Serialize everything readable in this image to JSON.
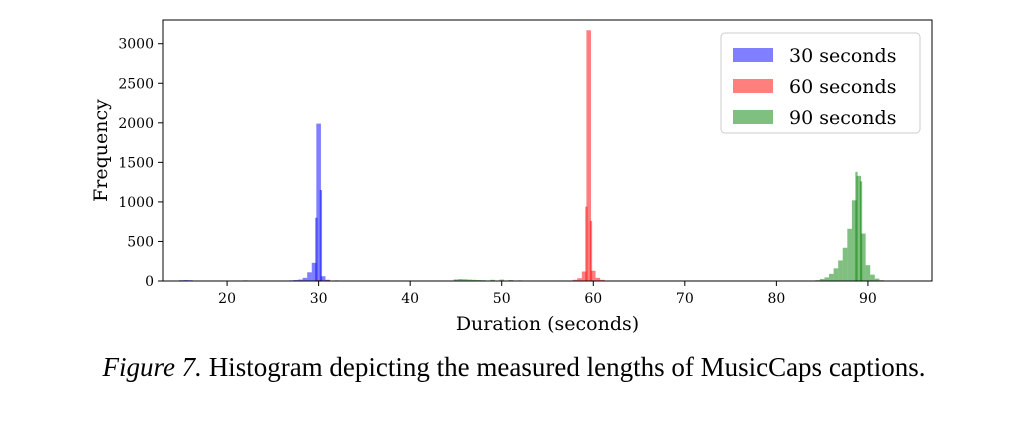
{
  "chart_data": {
    "type": "bar",
    "xlabel": "Duration (seconds)",
    "ylabel": "Frequency",
    "xlim": [
      13,
      97
    ],
    "ylim": [
      0,
      3300
    ],
    "xticks": [
      20,
      30,
      40,
      50,
      60,
      70,
      80,
      90
    ],
    "yticks": [
      0,
      500,
      1000,
      1500,
      2000,
      2500,
      3000
    ],
    "bin_width": 0.5,
    "legend_position": "top-right",
    "series": [
      {
        "name": "30 seconds",
        "color": "#0000ff",
        "bins": [
          {
            "x": 15.0,
            "y": 10
          },
          {
            "x": 15.5,
            "y": 12
          },
          {
            "x": 16.0,
            "y": 10
          },
          {
            "x": 16.5,
            "y": 6
          },
          {
            "x": 22.0,
            "y": 8
          },
          {
            "x": 26.5,
            "y": 5
          },
          {
            "x": 27.0,
            "y": 8
          },
          {
            "x": 27.5,
            "y": 12
          },
          {
            "x": 28.0,
            "y": 18
          },
          {
            "x": 28.5,
            "y": 40
          },
          {
            "x": 29.0,
            "y": 110
          },
          {
            "x": 29.5,
            "y": 230
          },
          {
            "x": 29.75,
            "y": 800
          },
          {
            "x": 30.0,
            "y": 1990
          },
          {
            "x": 30.25,
            "y": 1150
          },
          {
            "x": 30.5,
            "y": 60
          },
          {
            "x": 31.0,
            "y": 15
          },
          {
            "x": 31.5,
            "y": 6
          }
        ]
      },
      {
        "name": "60 seconds",
        "color": "#ff0000",
        "bins": [
          {
            "x": 30.0,
            "y": 12
          },
          {
            "x": 31.0,
            "y": 10
          },
          {
            "x": 32.0,
            "y": 8
          },
          {
            "x": 33.0,
            "y": 6
          },
          {
            "x": 57.0,
            "y": 5
          },
          {
            "x": 58.0,
            "y": 15
          },
          {
            "x": 58.5,
            "y": 35
          },
          {
            "x": 59.0,
            "y": 120
          },
          {
            "x": 59.25,
            "y": 940
          },
          {
            "x": 59.5,
            "y": 3170
          },
          {
            "x": 59.75,
            "y": 760
          },
          {
            "x": 60.0,
            "y": 130
          },
          {
            "x": 60.5,
            "y": 40
          },
          {
            "x": 61.0,
            "y": 15
          },
          {
            "x": 62.0,
            "y": 5
          }
        ]
      },
      {
        "name": "90 seconds",
        "color": "#008000",
        "bins": [
          {
            "x": 45.0,
            "y": 20
          },
          {
            "x": 45.5,
            "y": 25
          },
          {
            "x": 46.0,
            "y": 22
          },
          {
            "x": 46.5,
            "y": 18
          },
          {
            "x": 47.0,
            "y": 15
          },
          {
            "x": 47.5,
            "y": 12
          },
          {
            "x": 48.0,
            "y": 10
          },
          {
            "x": 49.0,
            "y": 15
          },
          {
            "x": 50.0,
            "y": 18
          },
          {
            "x": 51.0,
            "y": 12
          },
          {
            "x": 52.0,
            "y": 8
          },
          {
            "x": 84.5,
            "y": 10
          },
          {
            "x": 85.0,
            "y": 25
          },
          {
            "x": 85.5,
            "y": 45
          },
          {
            "x": 86.0,
            "y": 90
          },
          {
            "x": 86.5,
            "y": 160
          },
          {
            "x": 87.0,
            "y": 260
          },
          {
            "x": 87.5,
            "y": 420
          },
          {
            "x": 88.0,
            "y": 660
          },
          {
            "x": 88.5,
            "y": 1020
          },
          {
            "x": 88.75,
            "y": 1380
          },
          {
            "x": 89.0,
            "y": 1330
          },
          {
            "x": 89.25,
            "y": 1260
          },
          {
            "x": 89.5,
            "y": 600
          },
          {
            "x": 90.0,
            "y": 200
          },
          {
            "x": 90.5,
            "y": 80
          },
          {
            "x": 91.0,
            "y": 30
          },
          {
            "x": 91.5,
            "y": 10
          }
        ]
      }
    ]
  },
  "caption": {
    "label": "Figure 7.",
    "text": " Histogram depicting the measured lengths of MusicCaps captions."
  }
}
